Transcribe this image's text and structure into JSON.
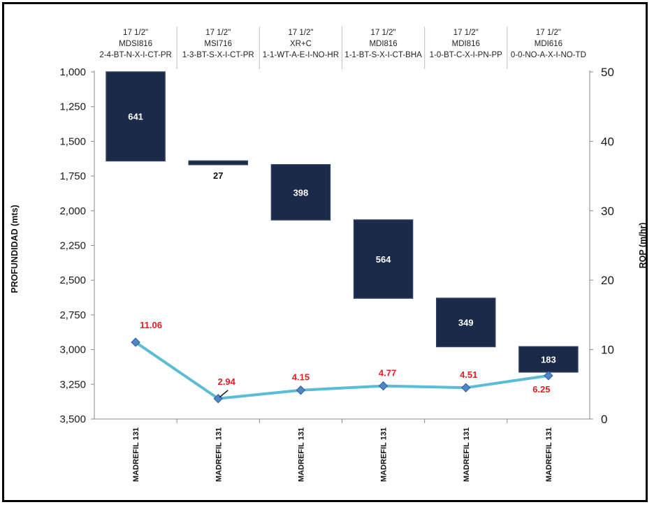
{
  "chart_data": {
    "type": "bar+line",
    "categories": [
      "MADREFIL 131",
      "MADREFIL 131",
      "MADREFIL 131",
      "MADREFIL 131",
      "MADREFIL 131",
      "MADREFIL 131"
    ],
    "headers": [
      [
        "17 1/2\"",
        "MDSI816",
        "2-4-BT-N-X-I-CT-PR"
      ],
      [
        "17 1/2\"",
        "MSI716",
        "1-3-BT-S-X-I-CT-PR"
      ],
      [
        "17 1/2\"",
        "XR+C",
        "1-1-WT-A-E-I-NO-HR"
      ],
      [
        "17 1/2\"",
        "MDI816",
        "1-1-BT-S-X-I-CT-BHA"
      ],
      [
        "17 1/2\"",
        "MDI816",
        "1-0-BT-C-X-I-PN-PP"
      ],
      [
        "17 1/2\"",
        "MDI616",
        "0-0-NO-A-X-I-NO-TD"
      ]
    ],
    "depth_bars": [
      {
        "top": 1000,
        "bottom": 1641,
        "label": "641"
      },
      {
        "top": 1641,
        "bottom": 1668,
        "label": "27"
      },
      {
        "top": 1668,
        "bottom": 2066,
        "label": "398"
      },
      {
        "top": 2066,
        "bottom": 2630,
        "label": "564"
      },
      {
        "top": 2630,
        "bottom": 2979,
        "label": "349"
      },
      {
        "top": 2979,
        "bottom": 3162,
        "label": "183"
      }
    ],
    "rop": {
      "values": [
        11.06,
        2.94,
        4.15,
        4.77,
        4.51,
        6.25
      ],
      "labels": [
        "11.06",
        "2.94",
        "4.15",
        "4.77",
        "4.51",
        "6.25"
      ]
    },
    "y_left": {
      "title": "PROFUNDIDAD (mts)",
      "min": 1000,
      "max": 3500,
      "step": 250,
      "reversed": true,
      "ticks": [
        "1,000",
        "1,250",
        "1,500",
        "1,750",
        "2,000",
        "2,250",
        "2,500",
        "2,750",
        "3,000",
        "3,250",
        "3,500"
      ]
    },
    "y_right": {
      "title": "ROP (m/hr)",
      "min": 0,
      "max": 50,
      "step": 10,
      "ticks": [
        "0",
        "10",
        "20",
        "30",
        "40",
        "50"
      ]
    },
    "colors": {
      "bar_fill": "#1a2a48",
      "bar_stroke": "#2e3f60",
      "line": "#5bbcd6",
      "marker": "#4f86c6",
      "rop_label": "#e02020",
      "gridline": "#d9d9d9"
    },
    "grid": false,
    "legend": "none"
  }
}
